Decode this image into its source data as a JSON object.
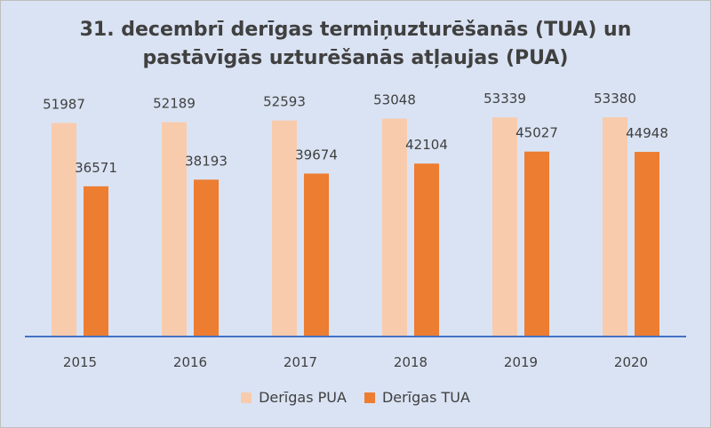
{
  "chart_data": {
    "type": "bar",
    "title_lines": [
      "31. decembrī derīgas termiņuzturēšanās (TUA) un",
      "pastāvīgās uzturēšanās atļaujas (PUA)"
    ],
    "categories": [
      "2015",
      "2016",
      "2017",
      "2018",
      "2019",
      "2020"
    ],
    "series": [
      {
        "name": "Derīgas PUA",
        "values": [
          51987,
          52189,
          52593,
          53048,
          53339,
          53380
        ],
        "color": "#f8cbad"
      },
      {
        "name": "Derīgas TUA",
        "values": [
          36571,
          38193,
          39674,
          42104,
          45027,
          44948
        ],
        "color": "#ed7d31"
      }
    ],
    "ylim": [
      0,
      57500
    ],
    "grid": false,
    "legend_position": "bottom",
    "data_labels": true,
    "axis_color": "#4472c4",
    "background": "#dae3f3"
  }
}
